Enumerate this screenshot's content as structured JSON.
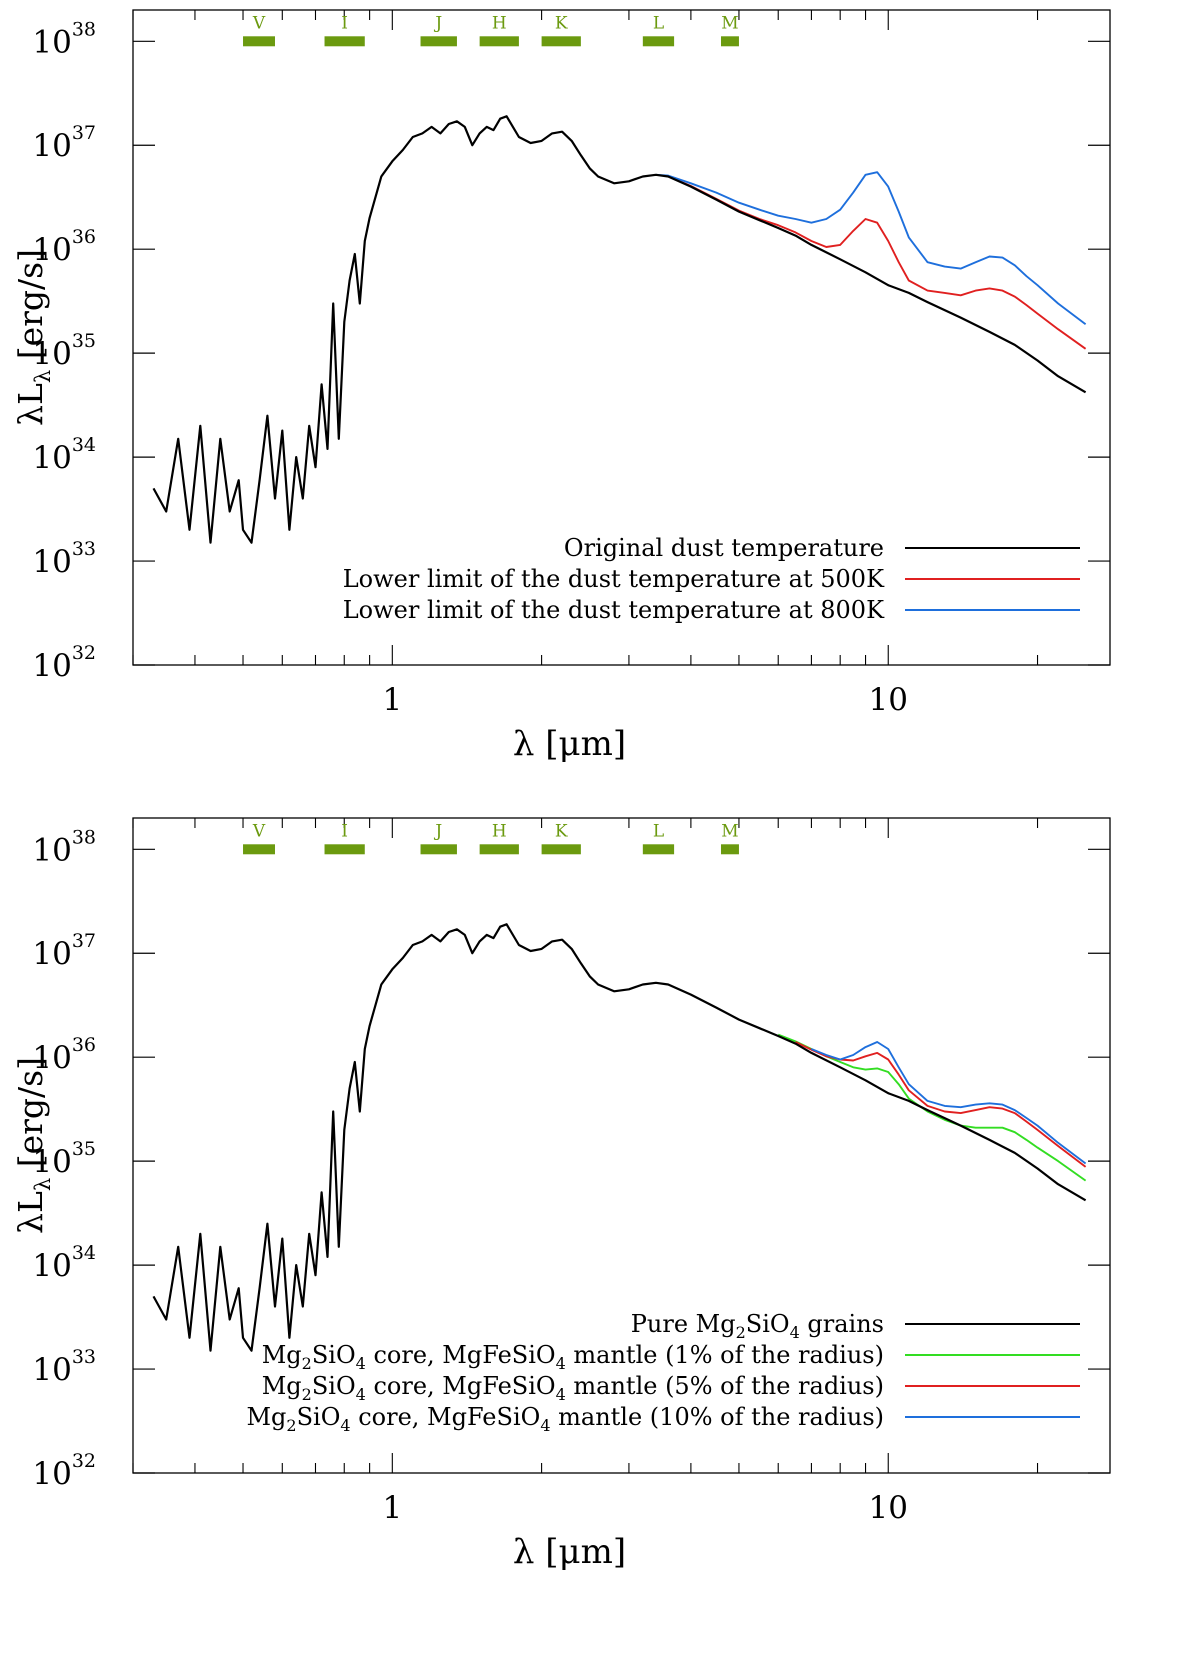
{
  "chart_data": [
    {
      "type": "line",
      "xscale": "log",
      "yscale": "log",
      "xlim": [
        0.3,
        28
      ],
      "ylim": [
        1e+32,
        2e+38
      ],
      "xlabel": "λ [μm]",
      "ylabel_main": "λL",
      "ylabel_sub": "λ",
      "ylabel_tail": " [erg/s]",
      "xticks": [
        {
          "value": 1,
          "label": "1"
        },
        {
          "value": 10,
          "label": "10"
        }
      ],
      "yticks": [
        {
          "value": 1e+32,
          "base": "10",
          "exp": "32"
        },
        {
          "value": 1e+33,
          "base": "10",
          "exp": "33"
        },
        {
          "value": 1e+34,
          "base": "10",
          "exp": "34"
        },
        {
          "value": 1e+35,
          "base": "10",
          "exp": "35"
        },
        {
          "value": 1e+36,
          "base": "10",
          "exp": "36"
        },
        {
          "value": 1e+37,
          "base": "10",
          "exp": "37"
        },
        {
          "value": 1e+38,
          "base": "10",
          "exp": "38"
        }
      ],
      "bands": [
        {
          "name": "V",
          "from": 0.5,
          "to": 0.58
        },
        {
          "name": "I",
          "from": 0.73,
          "to": 0.88
        },
        {
          "name": "J",
          "from": 1.14,
          "to": 1.35
        },
        {
          "name": "H",
          "from": 1.5,
          "to": 1.8
        },
        {
          "name": "K",
          "from": 2.0,
          "to": 2.4
        },
        {
          "name": "L",
          "from": 3.2,
          "to": 3.7
        },
        {
          "name": "M",
          "from": 4.6,
          "to": 5.0
        }
      ],
      "band_color": "#6b9a0f",
      "series": [
        {
          "name": "Original dust temperature",
          "color": "#000000",
          "x": [
            0.33,
            0.35,
            0.37,
            0.39,
            0.41,
            0.43,
            0.45,
            0.47,
            0.49,
            0.5,
            0.52,
            0.54,
            0.56,
            0.58,
            0.6,
            0.62,
            0.64,
            0.66,
            0.68,
            0.7,
            0.72,
            0.74,
            0.76,
            0.78,
            0.8,
            0.82,
            0.84,
            0.86,
            0.88,
            0.9,
            0.95,
            1.0,
            1.05,
            1.1,
            1.15,
            1.2,
            1.25,
            1.3,
            1.35,
            1.4,
            1.45,
            1.5,
            1.55,
            1.6,
            1.65,
            1.7,
            1.8,
            1.9,
            2.0,
            2.1,
            2.2,
            2.3,
            2.4,
            2.5,
            2.6,
            2.8,
            3.0,
            3.2,
            3.4,
            3.6,
            4.0,
            4.5,
            5.0,
            5.5,
            6.0,
            6.5,
            7.0,
            8.0,
            9.0,
            10.0,
            11.0,
            12.0,
            14.0,
            16.0,
            18.0,
            20.0,
            22.0,
            25.0
          ],
          "y": [
            5e+33,
            3e+33,
            1.5e+34,
            2e+33,
            2e+34,
            1.5e+33,
            1.5e+34,
            3e+33,
            6e+33,
            2e+33,
            1.5e+33,
            6e+33,
            2.5e+34,
            4e+33,
            1.8e+34,
            2e+33,
            1e+34,
            4e+33,
            2e+34,
            8e+33,
            5e+34,
            1.2e+34,
            3e+35,
            1.5e+34,
            2e+35,
            5e+35,
            9e+35,
            3e+35,
            1.2e+36,
            2e+36,
            5e+36,
            7e+36,
            9e+36,
            1.2e+37,
            1.3e+37,
            1.5e+37,
            1.3e+37,
            1.6e+37,
            1.7e+37,
            1.5e+37,
            1e+37,
            1.3e+37,
            1.5e+37,
            1.4e+37,
            1.8e+37,
            1.9e+37,
            1.2e+37,
            1.05e+37,
            1.1e+37,
            1.3e+37,
            1.35e+37,
            1.1e+37,
            8e+36,
            6e+36,
            5e+36,
            4.3e+36,
            4.5e+36,
            5e+36,
            5.2e+36,
            5e+36,
            4e+36,
            3e+36,
            2.3e+36,
            1.9e+36,
            1.6e+36,
            1.35e+36,
            1.1e+36,
            8e+35,
            6e+35,
            4.5e+35,
            3.8e+35,
            3.1e+35,
            2.2e+35,
            1.6e+35,
            1.2e+35,
            8.5e+34,
            6e+34,
            4.2e+34
          ]
        },
        {
          "name": "Lower limit of the dust temperature at 500K",
          "color": "#e02020",
          "x": [
            3.6,
            4.0,
            4.5,
            5.0,
            5.5,
            6.0,
            6.5,
            7.0,
            7.5,
            8.0,
            8.5,
            9.0,
            9.5,
            10.0,
            10.5,
            11.0,
            12.0,
            13.0,
            14.0,
            15.0,
            16.0,
            17.0,
            18.0,
            19.0,
            20.0,
            22.0,
            25.0
          ],
          "y": [
            5e+36,
            4.05e+36,
            3.05e+36,
            2.35e+36,
            1.95e+36,
            1.7e+36,
            1.45e+36,
            1.2e+36,
            1.05e+36,
            1.1e+36,
            1.5e+36,
            1.95e+36,
            1.8e+36,
            1.2e+36,
            7.5e+35,
            5e+35,
            4e+35,
            3.8e+35,
            3.6e+35,
            4e+35,
            4.2e+35,
            4e+35,
            3.5e+35,
            2.9e+35,
            2.4e+35,
            1.7e+35,
            1.1e+35
          ]
        },
        {
          "name": "Lower limit of the dust temperature at 800K",
          "color": "#1e6fdc",
          "x": [
            3.4,
            3.6,
            4.0,
            4.5,
            5.0,
            5.5,
            6.0,
            6.5,
            7.0,
            7.5,
            8.0,
            8.5,
            9.0,
            9.5,
            10.0,
            10.5,
            11.0,
            12.0,
            13.0,
            14.0,
            15.0,
            16.0,
            17.0,
            18.0,
            19.0,
            20.0,
            22.0,
            25.0
          ],
          "y": [
            5.2e+36,
            5.1e+36,
            4.3e+36,
            3.5e+36,
            2.8e+36,
            2.4e+36,
            2.1e+36,
            1.95e+36,
            1.8e+36,
            1.95e+36,
            2.4e+36,
            3.5e+36,
            5.2e+36,
            5.5e+36,
            4e+36,
            2.3e+36,
            1.3e+36,
            7.5e+35,
            6.8e+35,
            6.5e+35,
            7.5e+35,
            8.5e+35,
            8.3e+35,
            7e+35,
            5.5e+35,
            4.5e+35,
            3e+35,
            1.9e+35
          ]
        }
      ]
    },
    {
      "type": "line",
      "xscale": "log",
      "yscale": "log",
      "xlim": [
        0.3,
        28
      ],
      "ylim": [
        1e+32,
        2e+38
      ],
      "xlabel": "λ [μm]",
      "ylabel_main": "λL",
      "ylabel_sub": "λ",
      "ylabel_tail": " [erg/s]",
      "xticks": [
        {
          "value": 1,
          "label": "1"
        },
        {
          "value": 10,
          "label": "10"
        }
      ],
      "yticks": [
        {
          "value": 1e+32,
          "base": "10",
          "exp": "32"
        },
        {
          "value": 1e+33,
          "base": "10",
          "exp": "33"
        },
        {
          "value": 1e+34,
          "base": "10",
          "exp": "34"
        },
        {
          "value": 1e+35,
          "base": "10",
          "exp": "35"
        },
        {
          "value": 1e+36,
          "base": "10",
          "exp": "36"
        },
        {
          "value": 1e+37,
          "base": "10",
          "exp": "37"
        },
        {
          "value": 1e+38,
          "base": "10",
          "exp": "38"
        }
      ],
      "bands": [
        {
          "name": "V",
          "from": 0.5,
          "to": 0.58
        },
        {
          "name": "I",
          "from": 0.73,
          "to": 0.88
        },
        {
          "name": "J",
          "from": 1.14,
          "to": 1.35
        },
        {
          "name": "H",
          "from": 1.5,
          "to": 1.8
        },
        {
          "name": "K",
          "from": 2.0,
          "to": 2.4
        },
        {
          "name": "L",
          "from": 3.2,
          "to": 3.7
        },
        {
          "name": "M",
          "from": 4.6,
          "to": 5.0
        }
      ],
      "band_color": "#6b9a0f",
      "series": [
        {
          "name": "Pure Mg2SiO4 grains",
          "legend": [
            {
              "t": "Pure Mg"
            },
            {
              "t": "2",
              "sub": true
            },
            {
              "t": "SiO"
            },
            {
              "t": "4",
              "sub": true
            },
            {
              "t": " grains"
            }
          ],
          "color": "#000000",
          "x": [
            0.33,
            0.35,
            0.37,
            0.39,
            0.41,
            0.43,
            0.45,
            0.47,
            0.49,
            0.5,
            0.52,
            0.54,
            0.56,
            0.58,
            0.6,
            0.62,
            0.64,
            0.66,
            0.68,
            0.7,
            0.72,
            0.74,
            0.76,
            0.78,
            0.8,
            0.82,
            0.84,
            0.86,
            0.88,
            0.9,
            0.95,
            1.0,
            1.05,
            1.1,
            1.15,
            1.2,
            1.25,
            1.3,
            1.35,
            1.4,
            1.45,
            1.5,
            1.55,
            1.6,
            1.65,
            1.7,
            1.8,
            1.9,
            2.0,
            2.1,
            2.2,
            2.3,
            2.4,
            2.5,
            2.6,
            2.8,
            3.0,
            3.2,
            3.4,
            3.6,
            4.0,
            4.5,
            5.0,
            5.5,
            6.0,
            6.5,
            7.0,
            8.0,
            9.0,
            10.0,
            11.0,
            12.0,
            14.0,
            16.0,
            18.0,
            20.0,
            22.0,
            25.0
          ],
          "y": [
            5e+33,
            3e+33,
            1.5e+34,
            2e+33,
            2e+34,
            1.5e+33,
            1.5e+34,
            3e+33,
            6e+33,
            2e+33,
            1.5e+33,
            6e+33,
            2.5e+34,
            4e+33,
            1.8e+34,
            2e+33,
            1e+34,
            4e+33,
            2e+34,
            8e+33,
            5e+34,
            1.2e+34,
            3e+35,
            1.5e+34,
            2e+35,
            5e+35,
            9e+35,
            3e+35,
            1.2e+36,
            2e+36,
            5e+36,
            7e+36,
            9e+36,
            1.2e+37,
            1.3e+37,
            1.5e+37,
            1.3e+37,
            1.6e+37,
            1.7e+37,
            1.5e+37,
            1e+37,
            1.3e+37,
            1.5e+37,
            1.4e+37,
            1.8e+37,
            1.9e+37,
            1.2e+37,
            1.05e+37,
            1.1e+37,
            1.3e+37,
            1.35e+37,
            1.1e+37,
            8e+36,
            6e+36,
            5e+36,
            4.3e+36,
            4.5e+36,
            5e+36,
            5.2e+36,
            5e+36,
            4e+36,
            3e+36,
            2.3e+36,
            1.9e+36,
            1.6e+36,
            1.35e+36,
            1.1e+36,
            8e+35,
            6e+35,
            4.5e+35,
            3.8e+35,
            3.1e+35,
            2.2e+35,
            1.6e+35,
            1.2e+35,
            8.5e+34,
            6e+34,
            4.2e+34
          ]
        },
        {
          "name": "Mg2SiO4 core, MgFeSiO4 mantle (1% of the radius)",
          "legend": [
            {
              "t": "Mg"
            },
            {
              "t": "2",
              "sub": true
            },
            {
              "t": "SiO"
            },
            {
              "t": "4",
              "sub": true
            },
            {
              "t": " core, MgFeSiO"
            },
            {
              "t": "4",
              "sub": true
            },
            {
              "t": " mantle (1% of the radius)"
            }
          ],
          "color": "#33dd22",
          "x": [
            6.0,
            6.5,
            7.0,
            7.5,
            8.0,
            8.5,
            9.0,
            9.5,
            10.0,
            10.5,
            11.0,
            12.0,
            13.0,
            14.0,
            15.0,
            16.0,
            17.0,
            18.0,
            19.0,
            20.0,
            22.0,
            25.0
          ],
          "y": [
            1.65e+36,
            1.42e+36,
            1.2e+36,
            1.02e+36,
            9e+35,
            8e+35,
            7.6e+35,
            7.8e+35,
            7.2e+35,
            5.5e+35,
            4e+35,
            3e+35,
            2.5e+35,
            2.2e+35,
            2.1e+35,
            2.1e+35,
            2.1e+35,
            1.9e+35,
            1.6e+35,
            1.35e+35,
            1e+35,
            6.5e+34
          ]
        },
        {
          "name": "Mg2SiO4 core, MgFeSiO4 mantle (5% of the radius)",
          "legend": [
            {
              "t": "Mg"
            },
            {
              "t": "2",
              "sub": true
            },
            {
              "t": "SiO"
            },
            {
              "t": "4",
              "sub": true
            },
            {
              "t": " core, MgFeSiO"
            },
            {
              "t": "4",
              "sub": true
            },
            {
              "t": " mantle (5% of the radius)"
            }
          ],
          "color": "#e02020",
          "x": [
            6.5,
            7.0,
            7.5,
            8.0,
            8.5,
            9.0,
            9.5,
            10.0,
            10.5,
            11.0,
            12.0,
            13.0,
            14.0,
            15.0,
            16.0,
            17.0,
            18.0,
            19.0,
            20.0,
            22.0,
            25.0
          ],
          "y": [
            1.4e+36,
            1.18e+36,
            1.02e+36,
            9.5e+35,
            9.3e+35,
            1.02e+36,
            1.1e+36,
            9.5e+35,
            6.8e+35,
            4.8e+35,
            3.4e+35,
            3e+35,
            2.9e+35,
            3.1e+35,
            3.3e+35,
            3.2e+35,
            2.9e+35,
            2.4e+35,
            2e+35,
            1.4e+35,
            8.8e+34
          ]
        },
        {
          "name": "Mg2SiO4 core, MgFeSiO4 mantle (10% of the radius)",
          "legend": [
            {
              "t": "Mg"
            },
            {
              "t": "2",
              "sub": true
            },
            {
              "t": "SiO"
            },
            {
              "t": "4",
              "sub": true
            },
            {
              "t": " core, MgFeSiO"
            },
            {
              "t": "4",
              "sub": true
            },
            {
              "t": " mantle (10% of the radius)"
            }
          ],
          "color": "#1e6fdc",
          "x": [
            7.0,
            7.5,
            8.0,
            8.5,
            9.0,
            9.5,
            10.0,
            10.5,
            11.0,
            12.0,
            13.0,
            14.0,
            15.0,
            16.0,
            17.0,
            18.0,
            19.0,
            20.0,
            22.0,
            25.0
          ],
          "y": [
            1.2e+36,
            1.05e+36,
            9.5e+35,
            1.05e+36,
            1.25e+36,
            1.4e+36,
            1.2e+36,
            8e+35,
            5.5e+35,
            3.8e+35,
            3.4e+35,
            3.3e+35,
            3.5e+35,
            3.6e+35,
            3.5e+35,
            3.1e+35,
            2.6e+35,
            2.2e+35,
            1.5e+35,
            9.5e+34
          ]
        }
      ]
    }
  ]
}
